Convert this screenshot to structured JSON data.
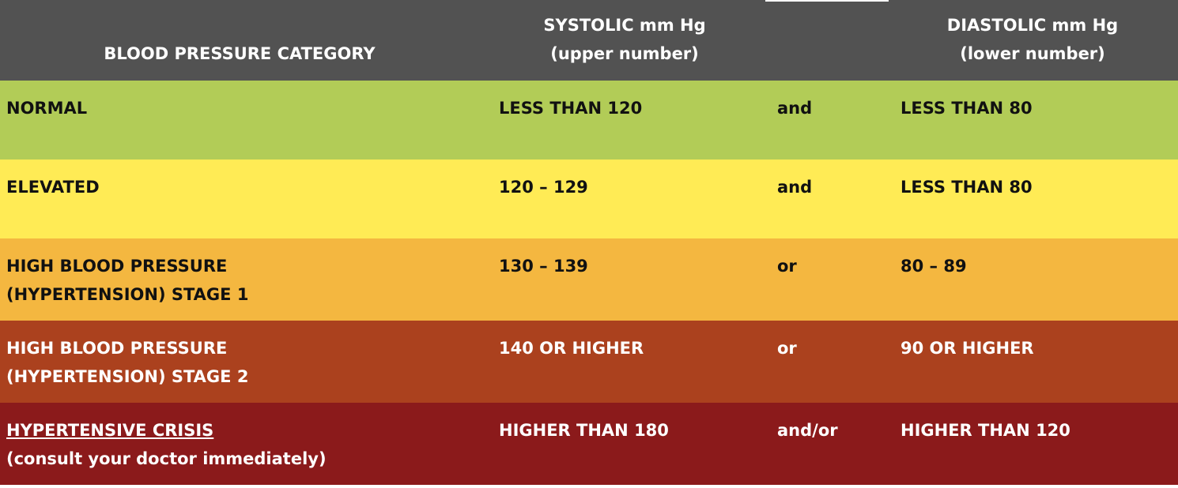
{
  "header": {
    "category": "BLOOD PRESSURE CATEGORY",
    "systolic": [
      "SYSTOLIC mm Hg",
      "(upper number)"
    ],
    "diastolic": [
      "DIASTOLIC mm Hg",
      "(lower number)"
    ]
  },
  "rows": [
    {
      "category": [
        "NORMAL"
      ],
      "systolic": "LESS THAN 120",
      "connector": "and",
      "diastolic": "LESS THAN 80"
    },
    {
      "category": [
        "ELEVATED"
      ],
      "systolic": "120 – 129",
      "connector": "and",
      "diastolic": "LESS THAN 80"
    },
    {
      "category": [
        "HIGH BLOOD PRESSURE",
        "(HYPERTENSION) STAGE 1"
      ],
      "systolic": "130 – 139",
      "connector": "or",
      "diastolic": "80 – 89"
    },
    {
      "category": [
        "HIGH BLOOD PRESSURE",
        "(HYPERTENSION) STAGE 2"
      ],
      "systolic": "140 OR HIGHER",
      "connector": "or",
      "diastolic": "90 OR HIGHER"
    },
    {
      "category": [
        "HYPERTENSIVE CRISIS",
        "(consult your doctor immediately)"
      ],
      "systolic": "HIGHER THAN 180",
      "connector": "and/or",
      "diastolic": "HIGHER THAN 120"
    }
  ]
}
